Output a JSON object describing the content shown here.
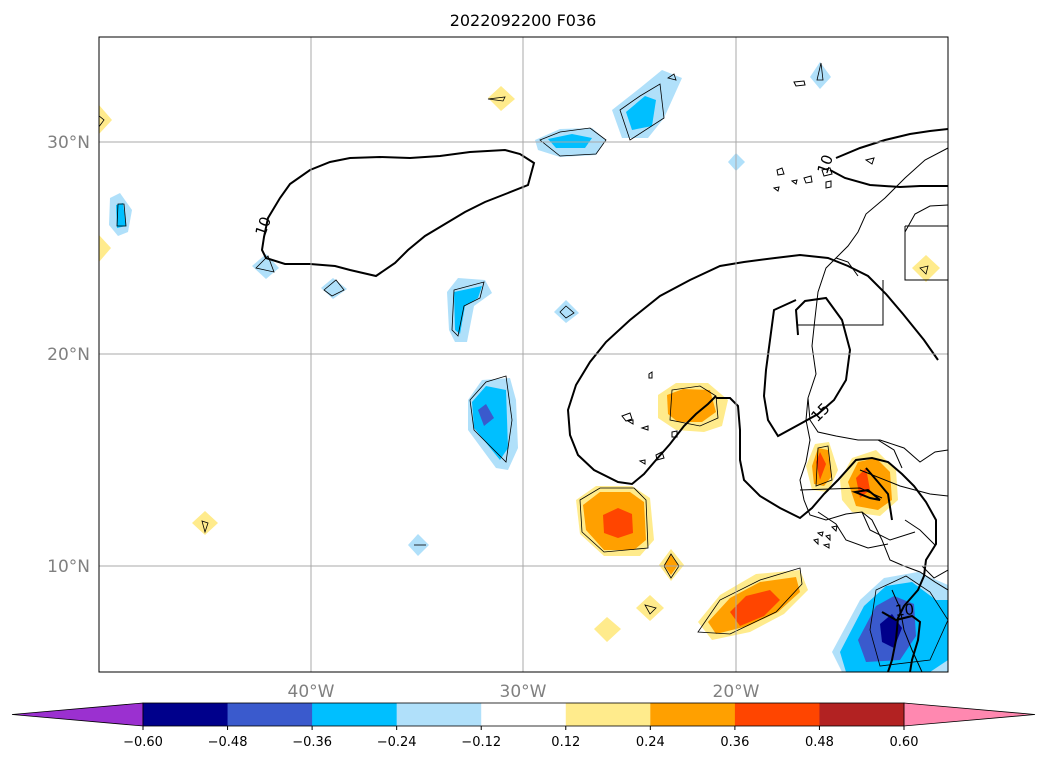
{
  "title": "2022092200 F036",
  "map": {
    "lat_labels": [
      "30°N",
      "20°N",
      "10°N"
    ],
    "lon_labels": [
      "40°W",
      "30°W",
      "20°W"
    ],
    "contour_labels": [
      "10",
      "10",
      "10",
      "15"
    ],
    "grid": true
  },
  "colorbar": {
    "tick_labels": [
      "−0.60",
      "−0.48",
      "−0.36",
      "−0.24",
      "−0.12",
      "0.12",
      "0.24",
      "0.36",
      "0.48",
      "0.60"
    ],
    "colors": [
      "#9b30d0",
      "#00008b",
      "#3a5acd",
      "#00bfff",
      "#b0e0fa",
      "#ffffff",
      "#ffeb8c",
      "#ffa000",
      "#ff4500",
      "#b22222",
      "#ff88b0"
    ]
  },
  "colors": {
    "contour": "#000000",
    "coast": "#000000",
    "grid": "#a9a9a9",
    "axis_label": "#808080"
  }
}
